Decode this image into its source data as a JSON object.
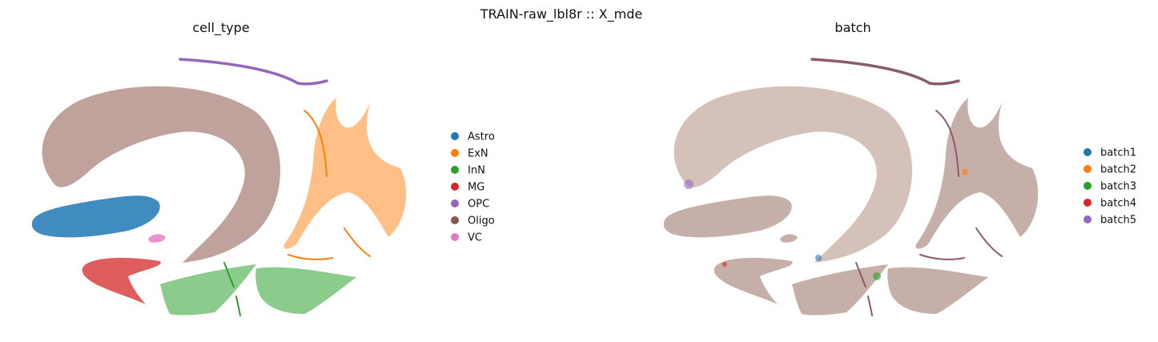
{
  "figure": {
    "suptitle": "TRAIN-raw_lbl8r :: X_mde"
  },
  "chart_data": [
    {
      "type": "scatter",
      "title": "cell_type",
      "xlabel": "",
      "ylabel": "",
      "axes_visible": false,
      "grid": false,
      "legend_placement": "right",
      "legend": [
        {
          "label": "Astro",
          "color": "#1f77b4"
        },
        {
          "label": "ExN",
          "color": "#ff7f0e"
        },
        {
          "label": "InN",
          "color": "#2ca02c"
        },
        {
          "label": "MG",
          "color": "#d62728"
        },
        {
          "label": "OPC",
          "color": "#9467bd"
        },
        {
          "label": "Oligo",
          "color": "#8c564b"
        },
        {
          "label": "VC",
          "color": "#e377c2"
        }
      ]
    },
    {
      "type": "scatter",
      "title": "batch",
      "xlabel": "",
      "ylabel": "",
      "axes_visible": false,
      "grid": false,
      "legend_placement": "right",
      "legend": [
        {
          "label": "batch1",
          "color": "#1f77b4"
        },
        {
          "label": "batch2",
          "color": "#ff7f0e"
        },
        {
          "label": "batch3",
          "color": "#2ca02c"
        },
        {
          "label": "batch4",
          "color": "#d62728"
        },
        {
          "label": "batch5",
          "color": "#9467bd"
        }
      ]
    }
  ]
}
